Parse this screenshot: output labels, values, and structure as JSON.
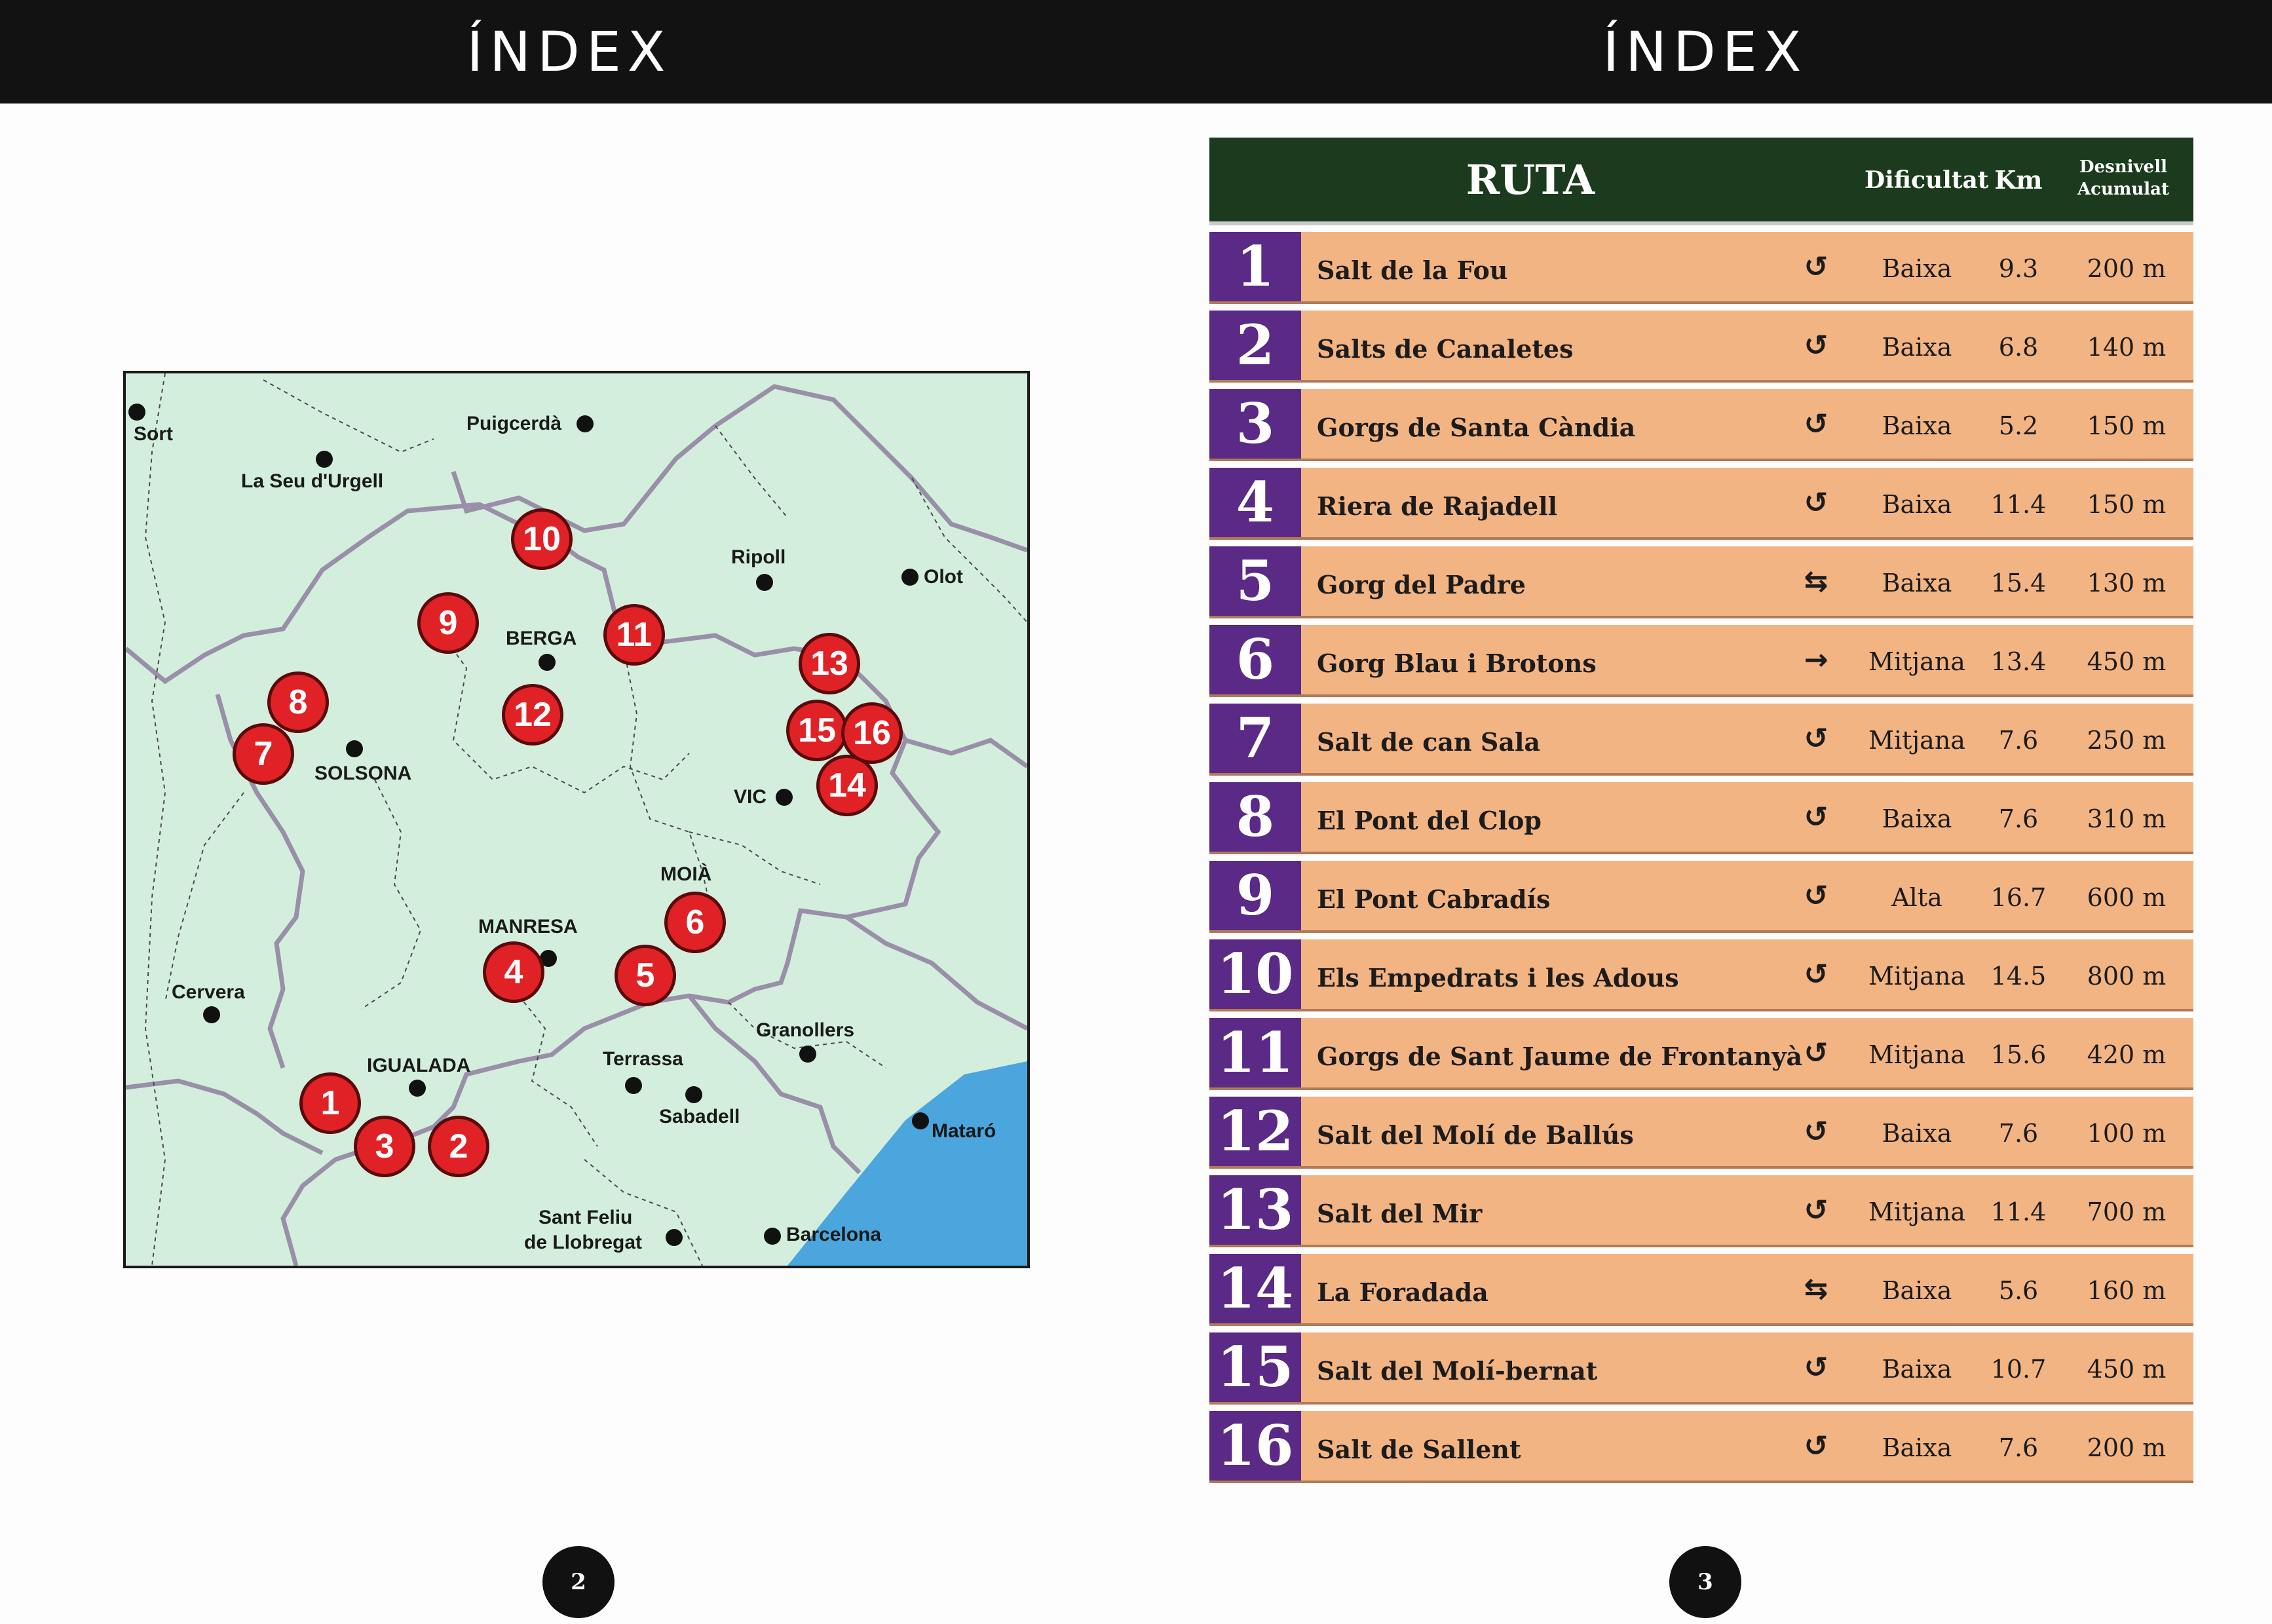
{
  "left_page": {
    "title": "ÍNDEX",
    "page_number": "2",
    "map": {
      "towns": {
        "sort": "Sort",
        "puigcerda": "Puigcerdà",
        "la_seu": "La Seu d'Urgell",
        "ripoll": "Ripoll",
        "olot": "Olot",
        "berga": "BERGA",
        "solsona": "SOLSONA",
        "vic": "VIC",
        "moia": "MOIÀ",
        "manresa": "MANRESA",
        "cervera": "Cervera",
        "granollers": "Granollers",
        "terrassa": "Terrassa",
        "igualada": "IGUALADA",
        "sabadell": "Sabadell",
        "mataro": "Mataró",
        "sant_feliu_1": "Sant Feliu",
        "sant_feliu_2": "de Llobregat",
        "barcelona": "Barcelona"
      },
      "markers": [
        "1",
        "2",
        "3",
        "4",
        "5",
        "6",
        "7",
        "8",
        "9",
        "10",
        "11",
        "12",
        "13",
        "14",
        "15",
        "16"
      ],
      "colors": {
        "land": "#d4eedd",
        "sea": "#4aa6dd",
        "borders": "#9a8fa8",
        "marker": "#e02226"
      }
    }
  },
  "right_page": {
    "title": "ÍNDEX",
    "page_number": "3",
    "table": {
      "headers": {
        "ruta": "RUTA",
        "dificultat": "Dificultat",
        "km": "Km",
        "desnivell_1": "Desnivell",
        "desnivell_2": "Acumulat"
      },
      "rows": [
        {
          "num": "1",
          "name": "Salt de la Fou",
          "icon": "↺",
          "icon_name": "circular-route-icon",
          "dificultat": "Baixa",
          "km": "9.3",
          "desnivell": "200 m"
        },
        {
          "num": "2",
          "name": "Salts de Canaletes",
          "icon": "↺",
          "icon_name": "circular-route-icon",
          "dificultat": "Baixa",
          "km": "6.8",
          "desnivell": "140 m"
        },
        {
          "num": "3",
          "name": "Gorgs de Santa Càndia",
          "icon": "↺",
          "icon_name": "circular-route-icon",
          "dificultat": "Baixa",
          "km": "5.2",
          "desnivell": "150 m"
        },
        {
          "num": "4",
          "name": "Riera de Rajadell",
          "icon": "↺",
          "icon_name": "circular-route-icon",
          "dificultat": "Baixa",
          "km": "11.4",
          "desnivell": "150 m"
        },
        {
          "num": "5",
          "name": "Gorg del Padre",
          "icon": "⇆",
          "icon_name": "round-trip-icon",
          "dificultat": "Baixa",
          "km": "15.4",
          "desnivell": "130 m"
        },
        {
          "num": "6",
          "name": "Gorg Blau i Brotons",
          "icon": "→",
          "icon_name": "one-way-icon",
          "dificultat": "Mitjana",
          "km": "13.4",
          "desnivell": "450 m"
        },
        {
          "num": "7",
          "name": "Salt de can Sala",
          "icon": "↺",
          "icon_name": "circular-route-icon",
          "dificultat": "Mitjana",
          "km": "7.6",
          "desnivell": "250 m"
        },
        {
          "num": "8",
          "name": "El Pont del Clop",
          "icon": "↺",
          "icon_name": "circular-route-icon",
          "dificultat": "Baixa",
          "km": "7.6",
          "desnivell": "310 m"
        },
        {
          "num": "9",
          "name": "El Pont Cabradís",
          "icon": "↺",
          "icon_name": "circular-route-icon",
          "dificultat": "Alta",
          "km": "16.7",
          "desnivell": "600 m"
        },
        {
          "num": "10",
          "name": "Els Empedrats i les Adous",
          "icon": "↺",
          "icon_name": "circular-route-icon",
          "dificultat": "Mitjana",
          "km": "14.5",
          "desnivell": "800 m"
        },
        {
          "num": "11",
          "name": "Gorgs de Sant Jaume de Frontanyà",
          "icon": "↺",
          "icon_name": "circular-route-icon",
          "dificultat": "Mitjana",
          "km": "15.6",
          "desnivell": "420 m"
        },
        {
          "num": "12",
          "name": "Salt del Molí de Ballús",
          "icon": "↺",
          "icon_name": "circular-route-icon",
          "dificultat": "Baixa",
          "km": "7.6",
          "desnivell": "100 m"
        },
        {
          "num": "13",
          "name": "Salt del Mir",
          "icon": "↺",
          "icon_name": "circular-route-icon",
          "dificultat": "Mitjana",
          "km": "11.4",
          "desnivell": "700 m"
        },
        {
          "num": "14",
          "name": "La Foradada",
          "icon": "⇆",
          "icon_name": "round-trip-icon",
          "dificultat": "Baixa",
          "km": "5.6",
          "desnivell": "160 m"
        },
        {
          "num": "15",
          "name": "Salt del Molí-bernat",
          "icon": "↺",
          "icon_name": "circular-route-icon",
          "dificultat": "Baixa",
          "km": "10.7",
          "desnivell": "450 m"
        },
        {
          "num": "16",
          "name": "Salt de Sallent",
          "icon": "↺",
          "icon_name": "circular-route-icon",
          "dificultat": "Baixa",
          "km": "7.6",
          "desnivell": "200 m"
        }
      ],
      "colors": {
        "header_bg": "#1b3a1e",
        "row_bg": "#f2b483",
        "num_bg": "#5a2a86"
      }
    }
  }
}
